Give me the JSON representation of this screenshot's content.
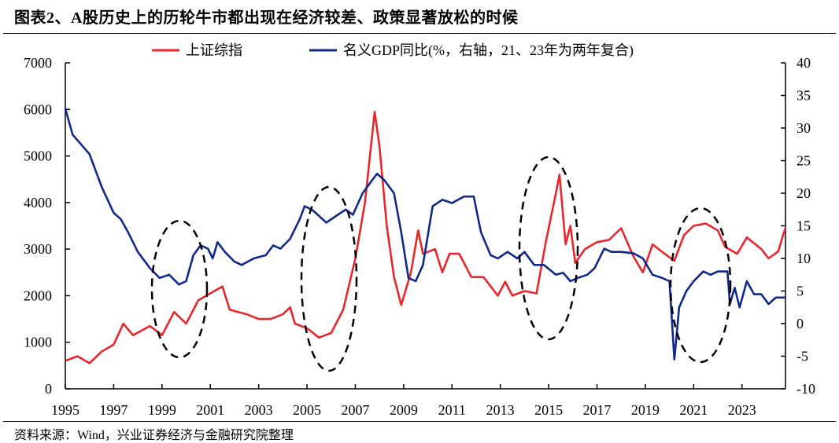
{
  "title": "图表2、A股历史上的历轮牛市都出现在经济较差、政策显著放松的时候",
  "source": "资料来源：Wind，兴业证券经济与金融研究院整理",
  "chart_data": {
    "type": "line",
    "title": "图表2、A股历史上的历轮牛市都出现在经济较差、政策显著放松的时候",
    "legend_position": "top",
    "grid": false,
    "x_ticks": [
      "1995",
      "1997",
      "1999",
      "2001",
      "2003",
      "2005",
      "2007",
      "2009",
      "2011",
      "2013",
      "2015",
      "2017",
      "2019",
      "2021",
      "2023"
    ],
    "xlim": [
      1995,
      2024.8
    ],
    "left_axis": {
      "ylim": [
        0,
        7000
      ],
      "ticks": [
        "0",
        "1000",
        "2000",
        "3000",
        "4000",
        "5000",
        "6000",
        "7000"
      ]
    },
    "right_axis": {
      "ylim": [
        -10,
        40
      ],
      "ticks": [
        "-10",
        "-5",
        "0",
        "5",
        "10",
        "15",
        "20",
        "25",
        "30",
        "35",
        "40"
      ]
    },
    "annotations": "dashed ellipses around 1999-2000, 2005-2006, 2014-2015, 2020-2022",
    "series": [
      {
        "name": "上证综指",
        "axis": "left",
        "color": "#e8262b",
        "x": [
          1995.0,
          1995.5,
          1996.0,
          1996.5,
          1997.0,
          1997.4,
          1997.8,
          1998.5,
          1999.0,
          1999.5,
          2000.0,
          2000.5,
          2001.0,
          2001.5,
          2001.8,
          2002.5,
          2003.0,
          2003.5,
          2004.0,
          2004.3,
          2004.5,
          2005.0,
          2005.5,
          2006.0,
          2006.5,
          2007.0,
          2007.4,
          2007.8,
          2008.0,
          2008.3,
          2008.6,
          2008.9,
          2009.3,
          2009.6,
          2009.8,
          2010.3,
          2010.6,
          2010.9,
          2011.3,
          2011.8,
          2012.3,
          2012.9,
          2013.2,
          2013.5,
          2014.0,
          2014.5,
          2014.9,
          2015.3,
          2015.45,
          2015.7,
          2015.9,
          2016.1,
          2016.5,
          2017.0,
          2017.5,
          2018.0,
          2018.5,
          2018.9,
          2019.3,
          2019.8,
          2020.2,
          2020.6,
          2021.0,
          2021.5,
          2022.0,
          2022.3,
          2022.8,
          2023.2,
          2023.8,
          2024.1,
          2024.5,
          2024.7,
          2024.8
        ],
        "values": [
          600,
          700,
          550,
          800,
          950,
          1400,
          1150,
          1350,
          1150,
          1650,
          1400,
          1900,
          2050,
          2200,
          1700,
          1600,
          1500,
          1500,
          1600,
          1750,
          1400,
          1300,
          1100,
          1200,
          1700,
          2800,
          4000,
          5950,
          5200,
          3500,
          2400,
          1800,
          2500,
          3400,
          2900,
          3000,
          2500,
          2900,
          2900,
          2400,
          2400,
          2000,
          2300,
          2000,
          2100,
          2050,
          3200,
          4200,
          4600,
          3100,
          3500,
          2700,
          3000,
          3150,
          3200,
          3450,
          2850,
          2500,
          3100,
          2900,
          2750,
          3300,
          3500,
          3550,
          3400,
          3050,
          2900,
          3250,
          3000,
          2800,
          2950,
          3300,
          3450
        ]
      },
      {
        "name": "名义GDP同比(%，右轴，21、23年为两年复合)",
        "axis": "right",
        "color": "#10288a",
        "x": [
          1995.0,
          1995.3,
          1996.0,
          1996.5,
          1997.0,
          1997.3,
          1997.6,
          1998.0,
          1998.5,
          1998.9,
          1999.3,
          1999.7,
          2000.0,
          2000.3,
          2000.6,
          2000.9,
          2001.1,
          2001.3,
          2001.6,
          2002.0,
          2002.3,
          2002.8,
          2003.3,
          2003.6,
          2003.9,
          2004.3,
          2004.7,
          2004.9,
          2005.2,
          2005.5,
          2005.8,
          2006.2,
          2006.6,
          2006.9,
          2007.3,
          2007.7,
          2007.9,
          2008.2,
          2008.6,
          2008.9,
          2009.2,
          2009.5,
          2009.8,
          2010.2,
          2010.6,
          2011.0,
          2011.5,
          2011.9,
          2012.2,
          2012.6,
          2012.9,
          2013.3,
          2013.7,
          2014.0,
          2014.4,
          2014.8,
          2015.3,
          2015.6,
          2015.9,
          2016.2,
          2016.6,
          2016.9,
          2017.3,
          2017.6,
          2018.0,
          2018.5,
          2018.9,
          2019.3,
          2019.7,
          2020.0,
          2020.2,
          2020.4,
          2020.7,
          2021.0,
          2021.4,
          2021.7,
          2022.0,
          2022.4,
          2022.5,
          2022.7,
          2022.9,
          2023.2,
          2023.5,
          2023.8,
          2024.1,
          2024.4,
          2024.8
        ],
        "values": [
          33,
          29,
          26,
          21,
          17,
          16,
          14,
          11,
          8.5,
          7,
          7.5,
          6,
          6.5,
          10.5,
          12,
          11.5,
          10,
          12.5,
          11,
          9.5,
          9,
          10,
          10.5,
          12,
          11.5,
          13,
          16,
          18,
          17.5,
          16.5,
          15.5,
          16.5,
          17.5,
          16.7,
          20,
          22,
          23,
          22,
          20,
          14,
          7,
          6.5,
          9,
          18,
          19,
          18.5,
          19.5,
          19.5,
          14,
          10.5,
          10,
          11,
          10,
          11,
          9,
          9,
          7.5,
          7.8,
          6.5,
          7,
          7.5,
          8.5,
          11.5,
          11,
          11,
          10.8,
          10,
          7.5,
          7,
          6.5,
          -5.5,
          2.5,
          5,
          6.5,
          8,
          7.5,
          8,
          8,
          3,
          5.5,
          2.5,
          6.5,
          4.5,
          4.5,
          3,
          4,
          4
        ]
      }
    ]
  }
}
